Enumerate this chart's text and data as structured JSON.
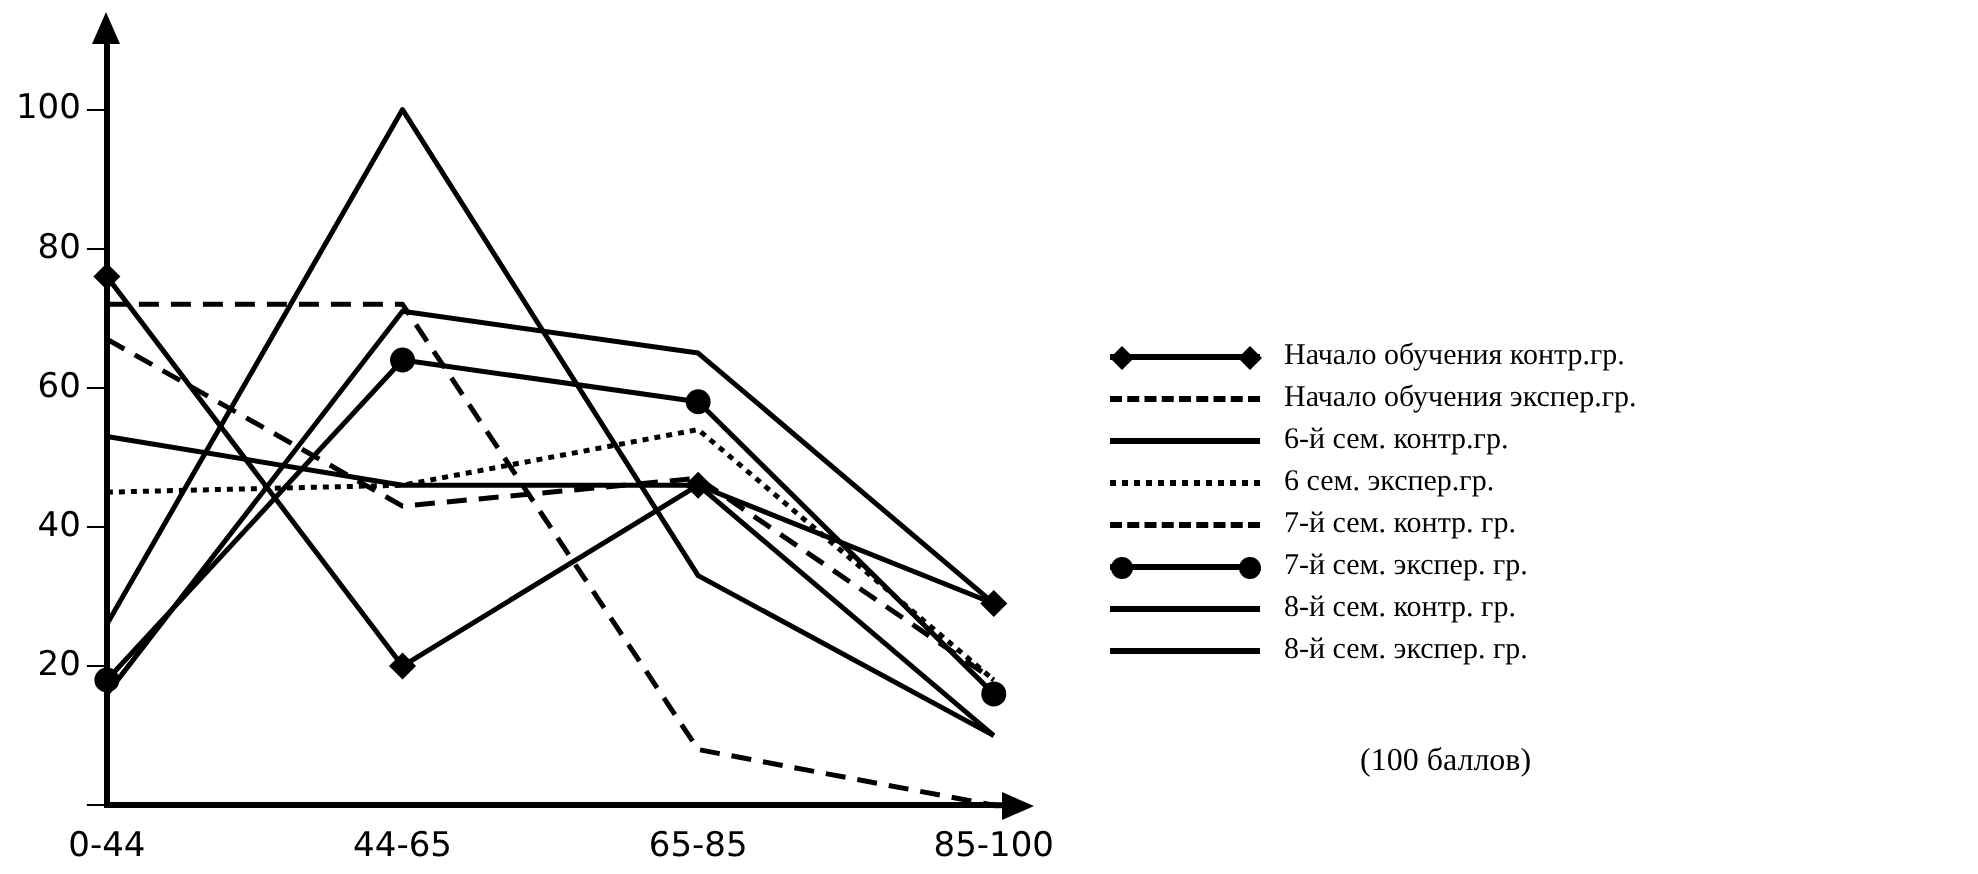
{
  "chart_data": {
    "type": "line",
    "categories": [
      "0-44",
      "44-65",
      "65-85",
      "85-100"
    ],
    "series": [
      {
        "name": "Начало обучения контр.гр.",
        "color": "#000000",
        "marker": "diamond",
        "line_style": "solid",
        "values": [
          76,
          20,
          46,
          29
        ]
      },
      {
        "name": "Начало обучения экспер.гр.",
        "color": "#000000",
        "marker": "none",
        "line_style": "dashed",
        "values": [
          67,
          43,
          47,
          18
        ]
      },
      {
        "name": "6-й сем. контр.гр.",
        "color": "#000000",
        "marker": "none",
        "line_style": "solid",
        "values": [
          53,
          46,
          46,
          10
        ]
      },
      {
        "name": "6 сем. экспер.гр.",
        "color": "#000000",
        "marker": "none",
        "line_style": "dotted",
        "values": [
          45,
          46,
          54,
          18
        ]
      },
      {
        "name": "7-й сем. контр. гр.",
        "color": "#000000",
        "marker": "none",
        "line_style": "dashed",
        "values": [
          72,
          72,
          8,
          0
        ]
      },
      {
        "name": "7-й сем. экспер. гр.",
        "color": "#000000",
        "marker": "circle",
        "line_style": "solid",
        "values": [
          18,
          64,
          58,
          16
        ]
      },
      {
        "name": "8-й сем. контр. гр.",
        "color": "#000000",
        "marker": "none",
        "line_style": "solid",
        "values": [
          16,
          71,
          65,
          29
        ]
      },
      {
        "name": "8-й сем. экспер. гр.",
        "color": "#000000",
        "marker": "none",
        "line_style": "solid",
        "values": [
          26,
          100,
          33,
          10
        ]
      }
    ],
    "ylim": [
      0,
      110
    ],
    "yticks": [
      {
        "value": 0,
        "label": null
      },
      20,
      40,
      60,
      80,
      100
    ],
    "grid": false,
    "legend": "right",
    "annotations": [
      "(100 баллов)"
    ]
  }
}
